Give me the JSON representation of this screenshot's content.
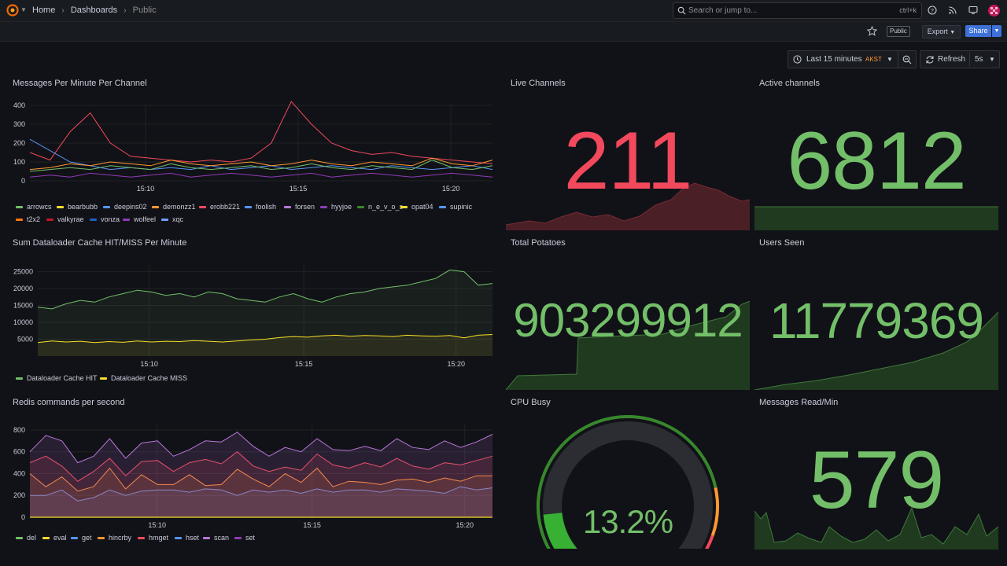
{
  "topbar": {
    "breadcrumb": {
      "home": "Home",
      "dashboards": "Dashboards",
      "current": "Public"
    },
    "search": {
      "placeholder": "Search or jump to...",
      "shortcut": "ctrl+k"
    }
  },
  "toolbar": {
    "public_badge": "Public",
    "export_label": "Export",
    "share_label": "Share"
  },
  "timecontrols": {
    "range_label": "Last 15 minutes",
    "timezone": "AKST",
    "refresh_label": "Refresh",
    "refresh_interval": "5s"
  },
  "colors": {
    "green": "#73bf69",
    "red": "#f2495c",
    "yellow": "#fade2a",
    "orange": "#ff9830",
    "blue": "#5794f2",
    "purple": "#b877d9"
  },
  "panels": {
    "messages_per_minute": {
      "title": "Messages Per Minute Per Channel",
      "legend": [
        "arrowcs",
        "bearbubb",
        "deepins02",
        "demonzz1",
        "erobb221",
        "foolish",
        "forsen",
        "hyyjoe",
        "n_e_v_o_s",
        "opat04",
        "supinic",
        "t2x2",
        "valkyrae",
        "vonza",
        "wolfeel",
        "xqc"
      ],
      "legend_colors": [
        "#73bf69",
        "#fade2a",
        "#5794f2",
        "#ff9830",
        "#f2495c",
        "#5794f2",
        "#b877d9",
        "#8f3bb8",
        "#37872d",
        "#fade2a",
        "#5794f2",
        "#ff780a",
        "#c4162a",
        "#1f60c4",
        "#8f3bb8",
        "#6e9fff"
      ]
    },
    "dataloader": {
      "title": "Sum Dataloader Cache HIT/MISS Per Minute",
      "legend": [
        "Dataloader Cache HIT",
        "Dataloader Cache MISS"
      ]
    },
    "redis": {
      "title": "Redis commands per second",
      "legend": [
        "del",
        "eval",
        "get",
        "hincrby",
        "hmget",
        "hset",
        "scan",
        "set"
      ],
      "legend_colors": [
        "#73bf69",
        "#fade2a",
        "#5794f2",
        "#ff9830",
        "#f2495c",
        "#5794f2",
        "#b877d9",
        "#8f3bb8"
      ]
    },
    "live_channels": {
      "title": "Live Channels",
      "value": "211"
    },
    "active_channels": {
      "title": "Active channels",
      "value": "6812"
    },
    "total_potatoes": {
      "title": "Total Potatoes",
      "value": "903299912"
    },
    "users_seen": {
      "title": "Users Seen",
      "value": "11779369"
    },
    "cpu_busy": {
      "title": "CPU Busy",
      "value": "13.2%",
      "fraction": 0.132
    },
    "messages_read": {
      "title": "Messages Read/Min",
      "value": "579"
    }
  },
  "chart_data": [
    {
      "type": "line",
      "title": "Messages Per Minute Per Channel",
      "x_ticks": [
        "15:10",
        "15:15",
        "15:20"
      ],
      "ylim": [
        0,
        400
      ],
      "y_ticks": [
        "0",
        "100",
        "200",
        "300",
        "400"
      ],
      "series": [
        {
          "name": "erobb221",
          "values": [
            150,
            110,
            260,
            360,
            200,
            130,
            120,
            110,
            100,
            110,
            100,
            120,
            200,
            420,
            300,
            200,
            160,
            140,
            150,
            130,
            120,
            110,
            100,
            90
          ]
        },
        {
          "name": "supinic",
          "values": [
            220,
            160,
            100,
            80,
            60,
            70,
            60,
            70,
            60,
            80,
            60,
            70,
            80,
            60,
            70,
            80,
            70,
            60,
            80,
            70,
            60,
            70,
            80,
            60
          ]
        },
        {
          "name": "arrowcs",
          "values": [
            50,
            60,
            70,
            60,
            80,
            70,
            60,
            90,
            70,
            60,
            70,
            80,
            60,
            70,
            90,
            70,
            60,
            80,
            70,
            60,
            110,
            70,
            60,
            80
          ]
        },
        {
          "name": "demonzz1",
          "values": [
            60,
            70,
            90,
            80,
            100,
            90,
            80,
            110,
            90,
            80,
            90,
            100,
            80,
            90,
            110,
            90,
            80,
            100,
            90,
            80,
            120,
            90,
            80,
            110
          ]
        },
        {
          "name": "xqc",
          "values": [
            20,
            30,
            20,
            40,
            30,
            20,
            30,
            40,
            20,
            30,
            40,
            30,
            20,
            30,
            40,
            20,
            30,
            40,
            30,
            20,
            30,
            40,
            30,
            20
          ]
        }
      ]
    },
    {
      "type": "line",
      "title": "Sum Dataloader Cache HIT/MISS Per Minute",
      "x_ticks": [
        "15:10",
        "15:15",
        "15:20"
      ],
      "ylim": [
        0,
        27000
      ],
      "y_ticks": [
        "5000",
        "10000",
        "15000",
        "20000",
        "25000"
      ],
      "series": [
        {
          "name": "Dataloader Cache HIT",
          "values": [
            14500,
            14000,
            15500,
            16500,
            16000,
            17500,
            18500,
            19500,
            19000,
            18000,
            18500,
            17500,
            19000,
            18500,
            17000,
            16500,
            16000,
            17500,
            18500,
            17000,
            16000,
            17500,
            18500,
            19000,
            20000,
            20500,
            21000,
            22000,
            23000,
            25500,
            25000,
            21000,
            21500
          ]
        },
        {
          "name": "Dataloader Cache MISS",
          "values": [
            4000,
            4500,
            4200,
            4400,
            4000,
            4300,
            4100,
            4500,
            4200,
            4400,
            4300,
            4600,
            4400,
            4200,
            4500,
            4800,
            5000,
            5500,
            5800,
            5600,
            6000,
            6200,
            5900,
            6100,
            6000,
            5800,
            6200,
            6000,
            5900,
            6100,
            5400,
            6200,
            6400
          ]
        }
      ]
    },
    {
      "type": "area",
      "title": "Redis commands per second",
      "x_ticks": [
        "15:10",
        "15:15",
        "15:20"
      ],
      "ylim": [
        0,
        850
      ],
      "y_ticks": [
        "0",
        "200",
        "400",
        "600",
        "800"
      ],
      "series": [
        {
          "name": "get",
          "values": [
            200,
            200,
            250,
            150,
            180,
            250,
            200,
            240,
            250,
            250,
            230,
            260,
            250,
            200,
            250,
            230,
            250,
            220,
            260,
            230,
            250,
            250,
            230,
            260,
            250,
            240,
            220,
            280,
            250,
            270
          ]
        },
        {
          "name": "hincrby",
          "values": [
            400,
            280,
            370,
            240,
            280,
            450,
            260,
            390,
            300,
            300,
            390,
            290,
            300,
            440,
            350,
            280,
            400,
            320,
            450,
            280,
            330,
            320,
            300,
            340,
            350,
            320,
            360,
            330,
            380,
            380
          ]
        },
        {
          "name": "set",
          "values": [
            500,
            560,
            470,
            330,
            420,
            540,
            380,
            510,
            520,
            420,
            500,
            530,
            490,
            600,
            470,
            420,
            460,
            430,
            580,
            480,
            450,
            500,
            460,
            540,
            470,
            440,
            500,
            480,
            520,
            560
          ]
        },
        {
          "name": "scan",
          "values": [
            600,
            750,
            700,
            500,
            560,
            720,
            540,
            680,
            700,
            560,
            620,
            700,
            690,
            780,
            650,
            560,
            640,
            600,
            720,
            620,
            610,
            650,
            610,
            720,
            640,
            620,
            700,
            640,
            690,
            760
          ]
        }
      ]
    }
  ]
}
